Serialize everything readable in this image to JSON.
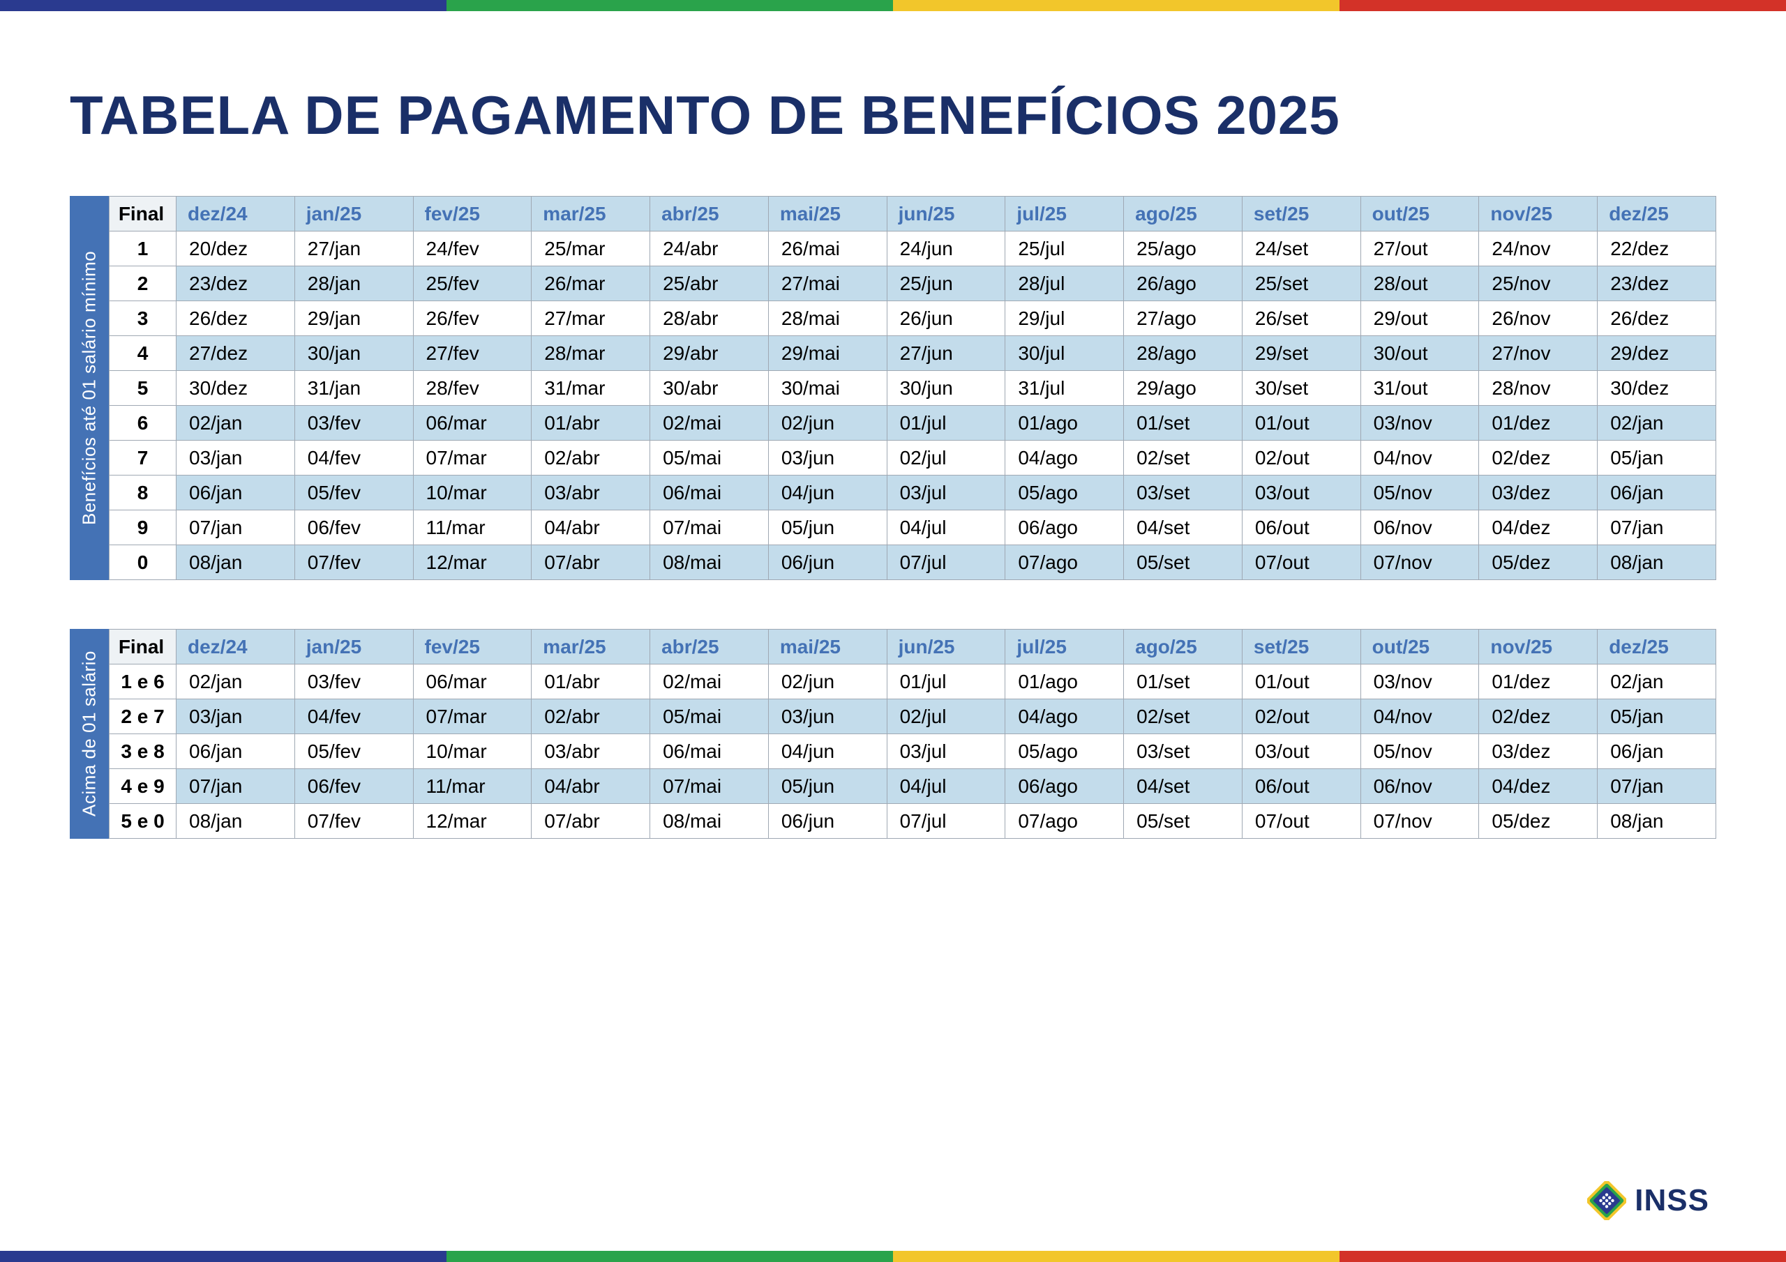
{
  "stripe_colors": [
    "#2a3a8f",
    "#2aa34b",
    "#f2c62b",
    "#d33228"
  ],
  "title": "TABELA DE PAGAMENTO DE BENEFÍCIOS 2025",
  "title_color": "#1a2f68",
  "header_bg": "#c3dceb",
  "header_fg": "#4472b5",
  "alt_row_bg": "#c3dceb",
  "side_bg": "#4472b5",
  "border_color": "#9fa8b3",
  "months": [
    "dez/24",
    "jan/25",
    "fev/25",
    "mar/25",
    "abr/25",
    "mai/25",
    "jun/25",
    "jul/25",
    "ago/25",
    "set/25",
    "out/25",
    "nov/25",
    "dez/25"
  ],
  "final_header": "Final",
  "table1": {
    "side_label": "Benefícios até 01 salário mínimo",
    "rows": [
      {
        "final": "1",
        "cells": [
          "20/dez",
          "27/jan",
          "24/fev",
          "25/mar",
          "24/abr",
          "26/mai",
          "24/jun",
          "25/jul",
          "25/ago",
          "24/set",
          "27/out",
          "24/nov",
          "22/dez"
        ]
      },
      {
        "final": "2",
        "cells": [
          "23/dez",
          "28/jan",
          "25/fev",
          "26/mar",
          "25/abr",
          "27/mai",
          "25/jun",
          "28/jul",
          "26/ago",
          "25/set",
          "28/out",
          "25/nov",
          "23/dez"
        ]
      },
      {
        "final": "3",
        "cells": [
          "26/dez",
          "29/jan",
          "26/fev",
          "27/mar",
          "28/abr",
          "28/mai",
          "26/jun",
          "29/jul",
          "27/ago",
          "26/set",
          "29/out",
          "26/nov",
          "26/dez"
        ]
      },
      {
        "final": "4",
        "cells": [
          "27/dez",
          "30/jan",
          "27/fev",
          "28/mar",
          "29/abr",
          "29/mai",
          "27/jun",
          "30/jul",
          "28/ago",
          "29/set",
          "30/out",
          "27/nov",
          "29/dez"
        ]
      },
      {
        "final": "5",
        "cells": [
          "30/dez",
          "31/jan",
          "28/fev",
          "31/mar",
          "30/abr",
          "30/mai",
          "30/jun",
          "31/jul",
          "29/ago",
          "30/set",
          "31/out",
          "28/nov",
          "30/dez"
        ]
      },
      {
        "final": "6",
        "cells": [
          "02/jan",
          "03/fev",
          "06/mar",
          "01/abr",
          "02/mai",
          "02/jun",
          "01/jul",
          "01/ago",
          "01/set",
          "01/out",
          "03/nov",
          "01/dez",
          "02/jan"
        ]
      },
      {
        "final": "7",
        "cells": [
          "03/jan",
          "04/fev",
          "07/mar",
          "02/abr",
          "05/mai",
          "03/jun",
          "02/jul",
          "04/ago",
          "02/set",
          "02/out",
          "04/nov",
          "02/dez",
          "05/jan"
        ]
      },
      {
        "final": "8",
        "cells": [
          "06/jan",
          "05/fev",
          "10/mar",
          "03/abr",
          "06/mai",
          "04/jun",
          "03/jul",
          "05/ago",
          "03/set",
          "03/out",
          "05/nov",
          "03/dez",
          "06/jan"
        ]
      },
      {
        "final": "9",
        "cells": [
          "07/jan",
          "06/fev",
          "11/mar",
          "04/abr",
          "07/mai",
          "05/jun",
          "04/jul",
          "06/ago",
          "04/set",
          "06/out",
          "06/nov",
          "04/dez",
          "07/jan"
        ]
      },
      {
        "final": "0",
        "cells": [
          "08/jan",
          "07/fev",
          "12/mar",
          "07/abr",
          "08/mai",
          "06/jun",
          "07/jul",
          "07/ago",
          "05/set",
          "07/out",
          "07/nov",
          "05/dez",
          "08/jan"
        ]
      }
    ]
  },
  "table2": {
    "side_label": "Acima de 01 salário",
    "rows": [
      {
        "final": "1 e 6",
        "cells": [
          "02/jan",
          "03/fev",
          "06/mar",
          "01/abr",
          "02/mai",
          "02/jun",
          "01/jul",
          "01/ago",
          "01/set",
          "01/out",
          "03/nov",
          "01/dez",
          "02/jan"
        ]
      },
      {
        "final": "2 e 7",
        "cells": [
          "03/jan",
          "04/fev",
          "07/mar",
          "02/abr",
          "05/mai",
          "03/jun",
          "02/jul",
          "04/ago",
          "02/set",
          "02/out",
          "04/nov",
          "02/dez",
          "05/jan"
        ]
      },
      {
        "final": "3 e 8",
        "cells": [
          "06/jan",
          "05/fev",
          "10/mar",
          "03/abr",
          "06/mai",
          "04/jun",
          "03/jul",
          "05/ago",
          "03/set",
          "03/out",
          "05/nov",
          "03/dez",
          "06/jan"
        ]
      },
      {
        "final": "4 e 9",
        "cells": [
          "07/jan",
          "06/fev",
          "11/mar",
          "04/abr",
          "07/mai",
          "05/jun",
          "04/jul",
          "06/ago",
          "04/set",
          "06/out",
          "06/nov",
          "04/dez",
          "07/jan"
        ]
      },
      {
        "final": "5 e 0",
        "cells": [
          "08/jan",
          "07/fev",
          "12/mar",
          "07/abr",
          "08/mai",
          "06/jun",
          "07/jul",
          "07/ago",
          "05/set",
          "07/out",
          "07/nov",
          "05/dez",
          "08/jan"
        ]
      }
    ]
  },
  "logo_text": "INSS",
  "logo_colors": {
    "blue": "#2a3a8f",
    "green": "#2aa34b",
    "yellow": "#f2c62b",
    "white": "#ffffff"
  }
}
